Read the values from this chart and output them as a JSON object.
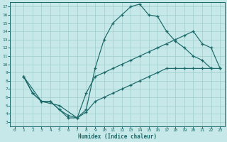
{
  "bg_color": "#c6e8e8",
  "grid_color": "#a0cccc",
  "line_color": "#1a6868",
  "xlabel": "Humidex (Indice chaleur)",
  "xlim": [
    -0.5,
    23.5
  ],
  "ylim": [
    2.5,
    17.5
  ],
  "xticks": [
    0,
    1,
    2,
    3,
    4,
    5,
    6,
    7,
    8,
    9,
    10,
    11,
    12,
    13,
    14,
    15,
    16,
    17,
    18,
    19,
    20,
    21,
    22,
    23
  ],
  "yticks": [
    3,
    4,
    5,
    6,
    7,
    8,
    9,
    10,
    11,
    12,
    13,
    14,
    15,
    16,
    17
  ],
  "curve1_x": [
    1,
    2,
    3,
    4,
    5,
    6,
    7,
    8,
    9,
    10,
    11,
    12,
    13,
    14,
    15,
    16,
    17,
    18,
    19,
    20,
    21,
    22
  ],
  "curve1_y": [
    8.5,
    6.5,
    5.5,
    5.5,
    4.5,
    3.5,
    3.5,
    4.5,
    9.5,
    13.0,
    15.0,
    16.0,
    17.0,
    17.3,
    16.0,
    15.8,
    14.0,
    12.8,
    12.0,
    11.0,
    10.5,
    9.5
  ],
  "curve2_x": [
    1,
    3,
    5,
    7,
    8,
    9,
    10,
    11,
    12,
    13,
    14,
    15,
    16,
    17,
    18,
    19,
    20,
    21,
    22,
    23
  ],
  "curve2_y": [
    8.5,
    5.5,
    5.0,
    3.5,
    6.5,
    8.5,
    9.0,
    9.5,
    10.0,
    10.5,
    11.0,
    11.5,
    12.0,
    12.5,
    13.0,
    13.5,
    14.0,
    12.5,
    12.0,
    9.5
  ],
  "curve3_x": [
    1,
    2,
    3,
    4,
    5,
    6,
    7,
    8,
    9,
    10,
    11,
    12,
    13,
    14,
    15,
    16,
    17,
    18,
    19,
    20,
    21,
    22,
    23
  ],
  "curve3_y": [
    8.5,
    6.5,
    5.5,
    5.5,
    4.5,
    3.8,
    3.5,
    4.2,
    5.5,
    6.0,
    6.5,
    7.0,
    7.5,
    8.0,
    8.5,
    9.0,
    9.5,
    9.5,
    9.5,
    9.5,
    9.5,
    9.5,
    9.5
  ]
}
